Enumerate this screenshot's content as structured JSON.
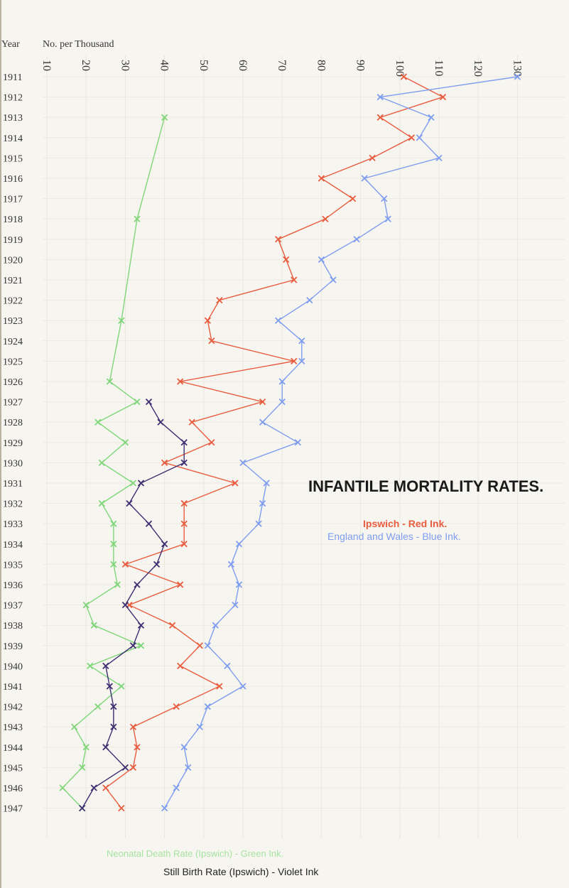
{
  "chart_data": {
    "type": "line",
    "title": "INFANTILE MORTALITY RATES.",
    "xlabel": "No. per Thousand",
    "ylabel": "Year",
    "orientation": "years on vertical axis (top to bottom), rate on horizontal axis",
    "xlim": [
      10,
      130
    ],
    "x_ticks": [
      10,
      20,
      30,
      40,
      50,
      60,
      70,
      80,
      90,
      100,
      110,
      120,
      130
    ],
    "y_tick_labels": [
      "1911",
      "1912",
      "1913",
      "1914",
      "1915",
      "1916",
      "1917",
      "1918",
      "1919",
      "1920",
      "1921",
      "1922",
      "1923",
      "1924",
      "1925",
      "1926",
      "1927",
      "1928",
      "1929",
      "1930",
      "1931",
      "1932",
      "1933",
      "1934",
      "1935",
      "1936",
      "1937",
      "1938",
      "1939",
      "1940",
      "1941",
      "1942",
      "1943",
      "1944",
      "1945",
      "1946",
      "1947"
    ],
    "legend": [
      {
        "label": "Ipswich  -  Red Ink.",
        "color": "#e85c3f"
      },
      {
        "label": "England and Wales  -  Blue Ink.",
        "color": "#7f9df0"
      },
      {
        "label": "Neonatal Death Rate (Ipswich)  -  Green Ink.",
        "color": "#7fd67a"
      },
      {
        "label": "Still Birth Rate (Ipswich)  -  Violet Ink",
        "color": "#3d2f72"
      }
    ],
    "series": [
      {
        "name": "Ipswich",
        "color": "#e85c3f",
        "years": [
          1911,
          1912,
          1913,
          1914,
          1915,
          1916,
          1917,
          1918,
          1919,
          1920,
          1921,
          1922,
          1923,
          1924,
          1925,
          1926,
          1927,
          1928,
          1929,
          1930,
          1931,
          1932,
          1933,
          1934,
          1935,
          1936,
          1937,
          1938,
          1939,
          1940,
          1941,
          1942,
          1943,
          1944,
          1945,
          1946,
          1947
        ],
        "values": [
          101,
          111,
          95,
          103,
          93,
          80,
          88,
          81,
          69,
          71,
          73,
          54,
          51,
          52,
          73,
          44,
          65,
          47,
          52,
          40,
          58,
          45,
          45,
          45,
          30,
          44,
          31,
          42,
          49,
          44,
          54,
          43,
          32,
          33,
          32,
          25,
          29
        ]
      },
      {
        "name": "England and Wales",
        "color": "#7f9df0",
        "years": [
          1911,
          1912,
          1913,
          1914,
          1915,
          1916,
          1917,
          1918,
          1919,
          1920,
          1921,
          1922,
          1923,
          1924,
          1925,
          1926,
          1927,
          1928,
          1929,
          1930,
          1931,
          1932,
          1933,
          1934,
          1935,
          1936,
          1937,
          1938,
          1939,
          1940,
          1941,
          1942,
          1943,
          1944,
          1945,
          1946,
          1947
        ],
        "values": [
          130,
          95,
          108,
          105,
          110,
          91,
          96,
          97,
          89,
          80,
          83,
          77,
          69,
          75,
          75,
          70,
          70,
          65,
          74,
          60,
          66,
          65,
          64,
          59,
          57,
          59,
          58,
          53,
          51,
          56,
          60,
          51,
          49,
          45,
          46,
          43,
          40
        ]
      },
      {
        "name": "Neonatal Death Rate (Ipswich)",
        "color": "#7fd67a",
        "years": [
          1913,
          1918,
          1923,
          1926,
          1927,
          1928,
          1929,
          1930,
          1931,
          1932,
          1933,
          1934,
          1935,
          1936,
          1937,
          1938,
          1939,
          1940,
          1941,
          1942,
          1943,
          1944,
          1945,
          1946,
          1947
        ],
        "values": [
          40,
          33,
          29,
          26,
          33,
          23,
          30,
          24,
          32,
          24,
          27,
          27,
          27,
          28,
          20,
          22,
          34,
          21,
          29,
          23,
          17,
          20,
          19,
          14,
          19
        ]
      },
      {
        "name": "Still Birth Rate (Ipswich)",
        "color": "#3d2f72",
        "years": [
          1927,
          1928,
          1929,
          1930,
          1931,
          1932,
          1933,
          1934,
          1935,
          1936,
          1937,
          1938,
          1939,
          1940,
          1941,
          1942,
          1943,
          1944,
          1945,
          1946,
          1947
        ],
        "values": [
          36,
          39,
          45,
          45,
          34,
          31,
          36,
          40,
          38,
          33,
          30,
          34,
          32,
          25,
          26,
          27,
          27,
          25,
          30,
          22,
          19
        ]
      }
    ],
    "grid": true,
    "legend_placement": "right, middle and bottom"
  }
}
